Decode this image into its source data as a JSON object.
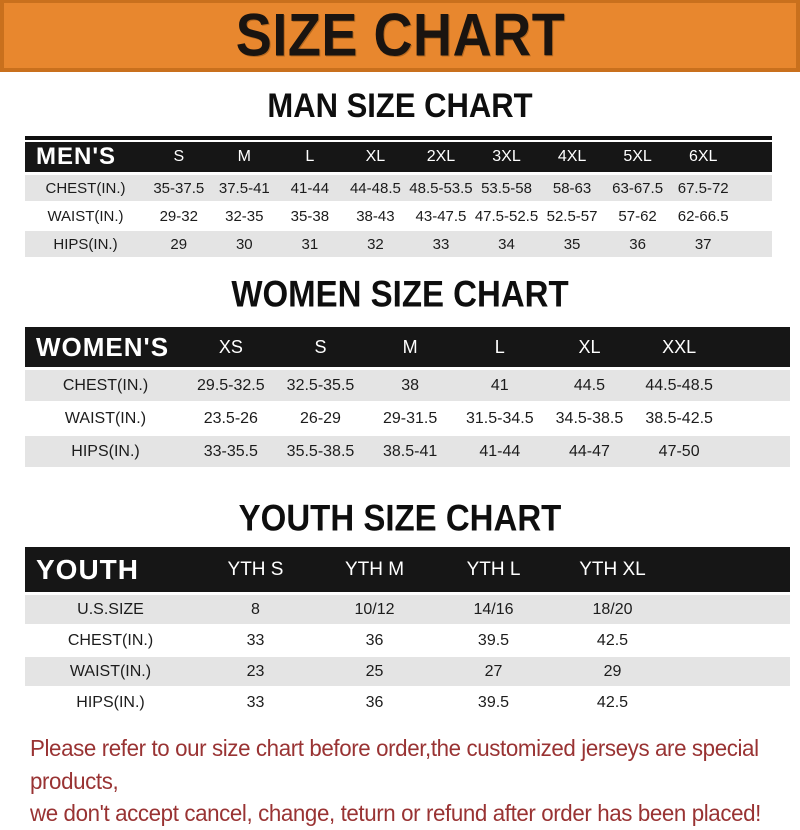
{
  "colors": {
    "banner_bg": "#E8872E",
    "banner_border": "#C9701D",
    "header_bg": "#161616",
    "header_text": "#FFFFFF",
    "stripe_bg": "#E4E4E4",
    "note_color": "#993333"
  },
  "banner": {
    "title": "SIZE CHART"
  },
  "tables": [
    {
      "id": "men",
      "heading": "MAN SIZE CHART",
      "label_header": "MEN'S",
      "columns": [
        "S",
        "M",
        "L",
        "XL",
        "2XL",
        "3XL",
        "4XL",
        "5XL",
        "6XL"
      ],
      "rows": [
        {
          "label": "CHEST(IN.)",
          "values": [
            "35-37.5",
            "37.5-41",
            "41-44",
            "44-48.5",
            "48.5-53.5",
            "53.5-58",
            "58-63",
            "63-67.5",
            "67.5-72"
          ]
        },
        {
          "label": "WAIST(IN.)",
          "values": [
            "29-32",
            "32-35",
            "35-38",
            "38-43",
            "43-47.5",
            "47.5-52.5",
            "52.5-57",
            "57-62",
            "62-66.5"
          ]
        },
        {
          "label": "HIPS(IN.)",
          "values": [
            "29",
            "30",
            "31",
            "32",
            "33",
            "34",
            "35",
            "36",
            "37"
          ]
        }
      ]
    },
    {
      "id": "women",
      "heading": "WOMEN SIZE CHART",
      "label_header": "WOMEN'S",
      "columns": [
        "XS",
        "S",
        "M",
        "L",
        "XL",
        "XXL"
      ],
      "rows": [
        {
          "label": "CHEST(IN.)",
          "values": [
            "29.5-32.5",
            "32.5-35.5",
            "38",
            "41",
            "44.5",
            "44.5-48.5"
          ]
        },
        {
          "label": "WAIST(IN.)",
          "values": [
            "23.5-26",
            "26-29",
            "29-31.5",
            "31.5-34.5",
            "34.5-38.5",
            "38.5-42.5"
          ]
        },
        {
          "label": "HIPS(IN.)",
          "values": [
            "33-35.5",
            "35.5-38.5",
            "38.5-41",
            "41-44",
            "44-47",
            "47-50"
          ]
        }
      ]
    },
    {
      "id": "youth",
      "heading": "YOUTH SIZE CHART",
      "label_header": "YOUTH",
      "columns": [
        "YTH S",
        "YTH M",
        "YTH L",
        "YTH XL"
      ],
      "rows": [
        {
          "label": "U.S.SIZE",
          "values": [
            "8",
            "10/12",
            "14/16",
            "18/20"
          ]
        },
        {
          "label": "CHEST(IN.)",
          "values": [
            "33",
            "36",
            "39.5",
            "42.5"
          ]
        },
        {
          "label": "WAIST(IN.)",
          "values": [
            "23",
            "25",
            "27",
            "29"
          ]
        },
        {
          "label": "HIPS(IN.)",
          "values": [
            "33",
            "36",
            "39.5",
            "42.5"
          ]
        }
      ]
    }
  ],
  "note": {
    "line1": "Please refer to our size chart before order,the customized jerseys are special products,",
    "line2": "we don't accept cancel, change, teturn or refund after order has been placed!"
  }
}
